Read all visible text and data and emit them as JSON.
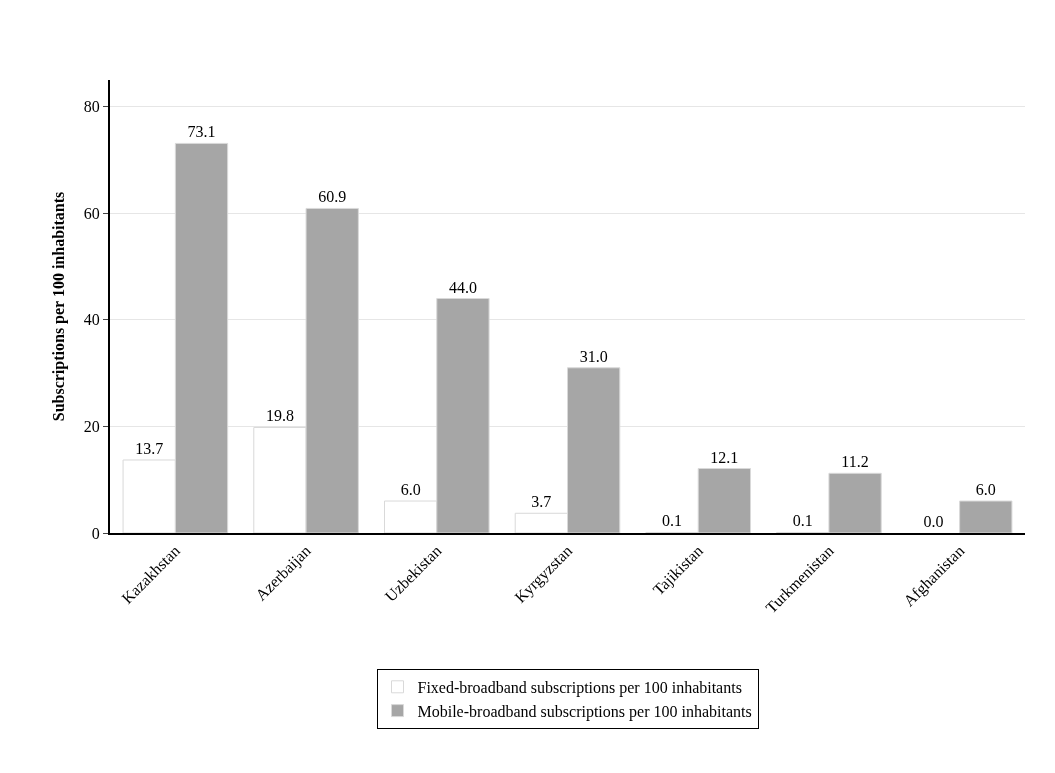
{
  "chart_data": {
    "type": "bar",
    "ylabel": "Subscriptions per 100 inhabitants",
    "categories": [
      "Kazakhstan",
      "Azerbaijan",
      "Uzbekistan",
      "Kyrgyzstan",
      "Tajikistan",
      "Turkmenistan",
      "Afghanistan"
    ],
    "series": [
      {
        "name": "Fixed-broadband subscriptions per 100 inhabitants",
        "color": "#ffffff",
        "values": [
          13.7,
          19.8,
          6.0,
          3.7,
          0.1,
          0.1,
          0.0
        ],
        "value_labels": [
          "13.7",
          "19.8",
          "6.0",
          "3.7",
          "0.1",
          "0.1",
          "0.0"
        ]
      },
      {
        "name": "Mobile-broadband subscriptions per 100 inhabitants",
        "color": "#a6a6a6",
        "values": [
          73.1,
          60.9,
          44.0,
          31.0,
          12.1,
          11.2,
          6.0
        ],
        "value_labels": [
          "73.1",
          "60.9",
          "44.0",
          "31.0",
          "12.1",
          "11.2",
          "6.0"
        ]
      }
    ],
    "ylim": [
      0,
      85
    ],
    "yticks": [
      0,
      20,
      40,
      60,
      80
    ],
    "grid": "y",
    "legend": "bottom"
  }
}
